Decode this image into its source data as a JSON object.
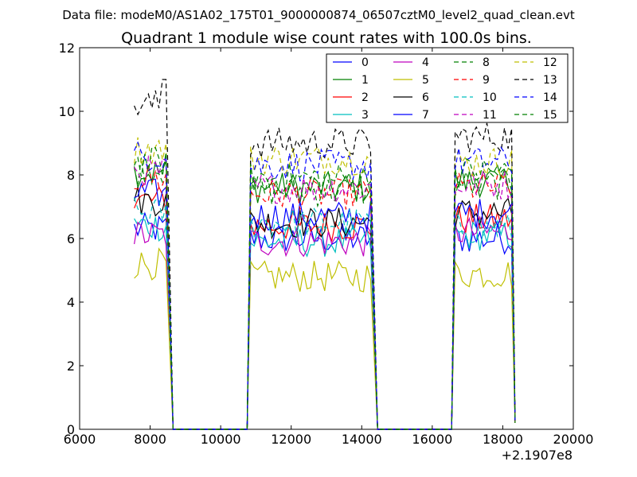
{
  "chart_data": {
    "type": "line",
    "suptitle": "Data file: modeM0/AS1A02_175T01_9000000874_06507cztM0_level2_quad_clean.evt",
    "title": "Quadrant 1 module wise count rates with 100.0s bins.",
    "xlabel": "",
    "ylabel": "",
    "x_offset_label": "+2.1907e8",
    "xlim": [
      6000,
      20000
    ],
    "ylim": [
      0,
      12
    ],
    "xticks": [
      6000,
      8000,
      10000,
      12000,
      14000,
      16000,
      18000,
      20000
    ],
    "yticks": [
      0,
      2,
      4,
      6,
      8,
      10,
      12
    ],
    "legend": {
      "position": "top-right",
      "columns": 4
    },
    "segments": [
      {
        "start": 7550,
        "end": 8450
      },
      {
        "start": 10850,
        "end": 14250
      },
      {
        "start": 16650,
        "end": 18250
      }
    ],
    "drop_edges": {
      "seg1_end": 8650,
      "gap1_end": 10750,
      "seg2_end": 14450,
      "gap2_end": 16550,
      "seg3_end": 18350
    },
    "series": [
      {
        "name": "0",
        "color": "#0000ff",
        "dash": "solid",
        "levels": [
          6.3,
          6.0,
          6.0
        ]
      },
      {
        "name": "1",
        "color": "#008000",
        "dash": "solid",
        "levels": [
          8.1,
          7.6,
          7.8
        ]
      },
      {
        "name": "2",
        "color": "#ff0000",
        "dash": "solid",
        "levels": [
          7.2,
          6.4,
          6.6
        ]
      },
      {
        "name": "3",
        "color": "#00bfbf",
        "dash": "solid",
        "levels": [
          6.4,
          5.9,
          6.1
        ]
      },
      {
        "name": "4",
        "color": "#bf00bf",
        "dash": "solid",
        "levels": [
          6.1,
          5.9,
          6.2
        ]
      },
      {
        "name": "5",
        "color": "#bfbf00",
        "dash": "solid",
        "levels": [
          5.2,
          4.8,
          4.9
        ]
      },
      {
        "name": "6",
        "color": "#000000",
        "dash": "solid",
        "levels": [
          7.2,
          6.5,
          6.8
        ]
      },
      {
        "name": "7",
        "color": "#0000ff",
        "dash": "solid",
        "levels": [
          7.4,
          6.7,
          6.8
        ]
      },
      {
        "name": "8",
        "color": "#008000",
        "dash": "dashed",
        "levels": [
          8.2,
          7.5,
          7.7
        ]
      },
      {
        "name": "9",
        "color": "#ff0000",
        "dash": "dashed",
        "levels": [
          7.9,
          7.4,
          7.6
        ]
      },
      {
        "name": "10",
        "color": "#00bfbf",
        "dash": "dashed",
        "levels": [
          6.8,
          6.5,
          6.3
        ]
      },
      {
        "name": "11",
        "color": "#bf00bf",
        "dash": "dashed",
        "levels": [
          8.1,
          7.6,
          7.7
        ]
      },
      {
        "name": "12",
        "color": "#bfbf00",
        "dash": "dashed",
        "levels": [
          8.8,
          8.5,
          8.4
        ]
      },
      {
        "name": "13",
        "color": "#000000",
        "dash": "dashed",
        "levels": [
          10.2,
          9.0,
          9.2
        ]
      },
      {
        "name": "14",
        "color": "#0000ff",
        "dash": "dashed",
        "levels": [
          8.6,
          8.3,
          8.4
        ]
      },
      {
        "name": "15",
        "color": "#008000",
        "dash": "dashed",
        "levels": [
          8.4,
          7.9,
          8.1
        ]
      }
    ]
  }
}
